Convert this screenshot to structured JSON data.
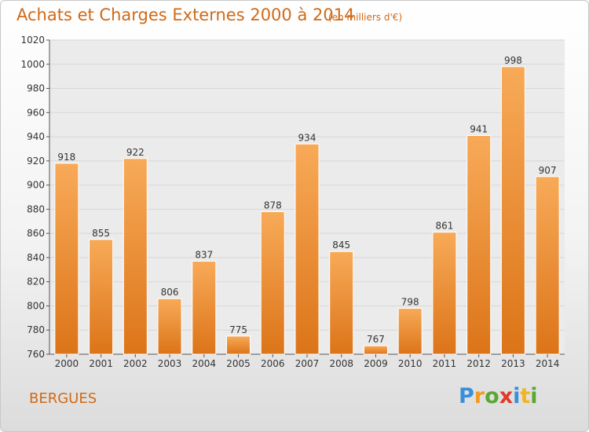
{
  "title": "Achats et Charges Externes 2000 à 2014",
  "subtitle": "(en milliers d'€)",
  "town": "BERGUES",
  "logo": {
    "letters": [
      "P",
      "r",
      "o",
      "x",
      "i",
      "t",
      "i"
    ],
    "colors": [
      "#3a8fd8",
      "#f29b1f",
      "#5aa832",
      "#e03a2a",
      "#3a8fd8",
      "#f2b51f",
      "#5aa832"
    ]
  },
  "colors": {
    "accent": "#d06a18",
    "bar_top": "#f8aa58",
    "bar_bottom": "#dc7418",
    "grid": "#d7d7d7",
    "plot_bg": "#ebebeb"
  },
  "chart_data": {
    "type": "bar",
    "title": "Achats et Charges Externes 2000 à 2014",
    "subtitle": "(en milliers d'€)",
    "categories": [
      "2000",
      "2001",
      "2002",
      "2003",
      "2004",
      "2005",
      "2006",
      "2007",
      "2008",
      "2009",
      "2010",
      "2011",
      "2012",
      "2013",
      "2014"
    ],
    "values": [
      918,
      855,
      922,
      806,
      837,
      775,
      878,
      934,
      845,
      767,
      798,
      861,
      941,
      998,
      907
    ],
    "ylim": [
      760,
      1020
    ],
    "yticks": [
      760,
      780,
      800,
      820,
      840,
      860,
      880,
      900,
      920,
      940,
      960,
      980,
      1000,
      1020
    ],
    "grid": true,
    "xlabel": "",
    "ylabel": ""
  }
}
